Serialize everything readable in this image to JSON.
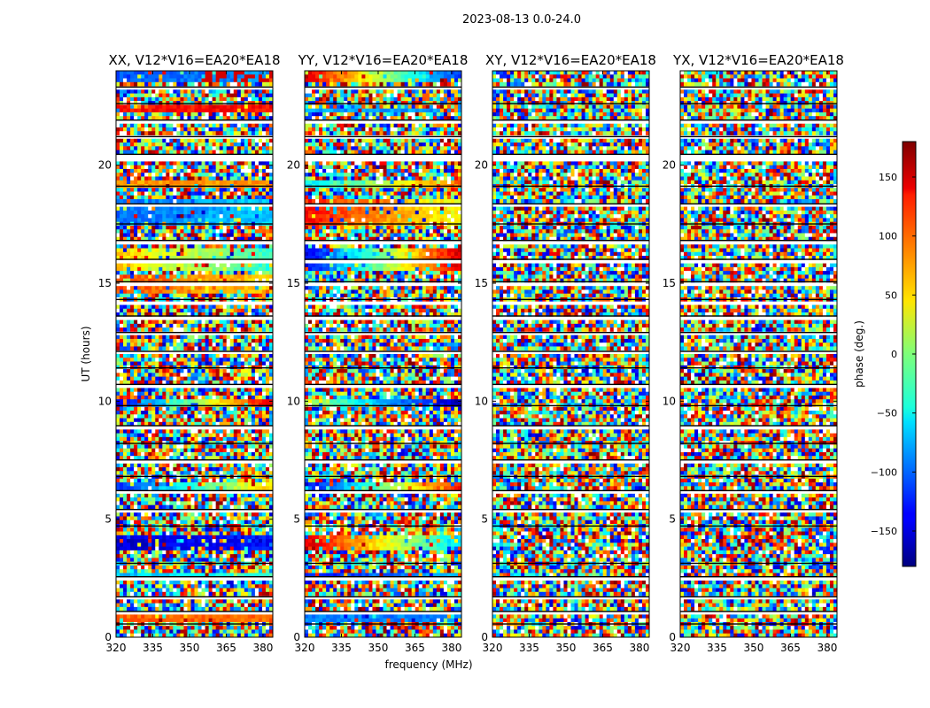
{
  "figure_title": "2023-08-13 0.0-24.0",
  "chart_data": {
    "type": "heatmap",
    "colormap": "jet",
    "xlabel": "frequency (MHz)",
    "ylabel": "UT (hours)",
    "xlim": [
      320,
      384
    ],
    "ylim": [
      0,
      24
    ],
    "x_ticks": [
      320,
      335,
      350,
      365,
      380
    ],
    "y_ticks": [
      0,
      5,
      10,
      15,
      20
    ],
    "colorbar": {
      "label": "phase (deg.)",
      "range": [
        -180,
        180
      ],
      "ticks": [
        -150,
        -100,
        -50,
        0,
        50,
        100,
        150
      ],
      "tick_labels": [
        "−150",
        "−100",
        "−50",
        "0",
        "50",
        "100",
        "150"
      ]
    },
    "flagged_ut_bands": [
      [
        0.45,
        0.55
      ],
      [
        1.0,
        1.08
      ],
      [
        1.6,
        1.7
      ],
      [
        2.45,
        2.55
      ],
      [
        3.0,
        3.12
      ],
      [
        4.6,
        4.7
      ],
      [
        5.3,
        5.4
      ],
      [
        6.1,
        6.2
      ],
      [
        6.7,
        6.8
      ],
      [
        7.4,
        7.5
      ],
      [
        8.1,
        8.2
      ],
      [
        8.8,
        8.95
      ],
      [
        9.7,
        9.8
      ],
      [
        10.6,
        10.7
      ],
      [
        11.3,
        11.4
      ],
      [
        12.0,
        12.1
      ],
      [
        12.8,
        12.9
      ],
      [
        13.5,
        13.6
      ],
      [
        14.15,
        14.3
      ],
      [
        14.95,
        15.05
      ],
      [
        15.9,
        16.0
      ],
      [
        16.7,
        16.8
      ],
      [
        17.4,
        17.5
      ],
      [
        18.25,
        18.35
      ],
      [
        19.0,
        19.1
      ],
      [
        20.2,
        20.45
      ],
      [
        21.1,
        21.2
      ],
      [
        21.8,
        21.9
      ],
      [
        22.5,
        22.6
      ],
      [
        23.2,
        23.3
      ]
    ],
    "panels": [
      {
        "title": "XX, V12*V16=EA20*EA18",
        "coherent_bands": [
          {
            "ut": [
              23.6,
              24.0
            ],
            "phase": [
              -110,
              -80
            ],
            "secondary_phase": 150
          },
          {
            "ut": [
              22.3,
              22.5
            ],
            "phase": [
              130,
              130
            ]
          },
          {
            "ut": [
              19.1,
              19.4
            ],
            "phase": [
              80,
              80
            ]
          },
          {
            "ut": [
              17.5,
              18.6
            ],
            "phase": [
              -100,
              -60
            ]
          },
          {
            "ut": [
              15.6,
              16.4
            ],
            "phase": [
              60,
              -30
            ]
          },
          {
            "ut": [
              14.6,
              15.3
            ],
            "phase": [
              110,
              60
            ]
          },
          {
            "ut": [
              9.7,
              10.0
            ],
            "phase": [
              -140,
              150
            ]
          },
          {
            "ut": [
              6.2,
              6.5
            ],
            "phase": [
              -120,
              60
            ]
          },
          {
            "ut": [
              3.7,
              4.3
            ],
            "phase": [
              -150,
              -130
            ]
          },
          {
            "ut": [
              2.55,
              2.75
            ],
            "phase": [
              -70,
              -20
            ]
          },
          {
            "ut": [
              0.6,
              0.9
            ],
            "phase": [
              100,
              100
            ]
          }
        ]
      },
      {
        "title": "YY, V12*V16=EA20*EA18",
        "coherent_bands": [
          {
            "ut": [
              23.6,
              24.0
            ],
            "phase": [
              150,
              -120
            ]
          },
          {
            "ut": [
              22.2,
              22.45
            ],
            "phase": [
              -80,
              -80
            ]
          },
          {
            "ut": [
              19.1,
              19.4
            ],
            "phase": [
              -50,
              100
            ]
          },
          {
            "ut": [
              17.5,
              18.6
            ],
            "phase": [
              130,
              40
            ]
          },
          {
            "ut": [
              15.6,
              16.4
            ],
            "phase": [
              -140,
              150
            ]
          },
          {
            "ut": [
              9.7,
              10.0
            ],
            "phase": [
              20,
              -160
            ]
          },
          {
            "ut": [
              6.2,
              6.5
            ],
            "phase": [
              -140,
              130
            ]
          },
          {
            "ut": [
              3.7,
              4.3
            ],
            "phase": [
              150,
              -60
            ]
          },
          {
            "ut": [
              2.55,
              2.75
            ],
            "phase": [
              -130,
              -70
            ]
          },
          {
            "ut": [
              0.6,
              0.9
            ],
            "phase": [
              -90,
              -90
            ]
          }
        ]
      },
      {
        "title": "XY, V12*V16=EA20*EA18",
        "coherent_bands": []
      },
      {
        "title": "YX, V12*V16=EA20*EA18",
        "coherent_bands": []
      }
    ]
  }
}
